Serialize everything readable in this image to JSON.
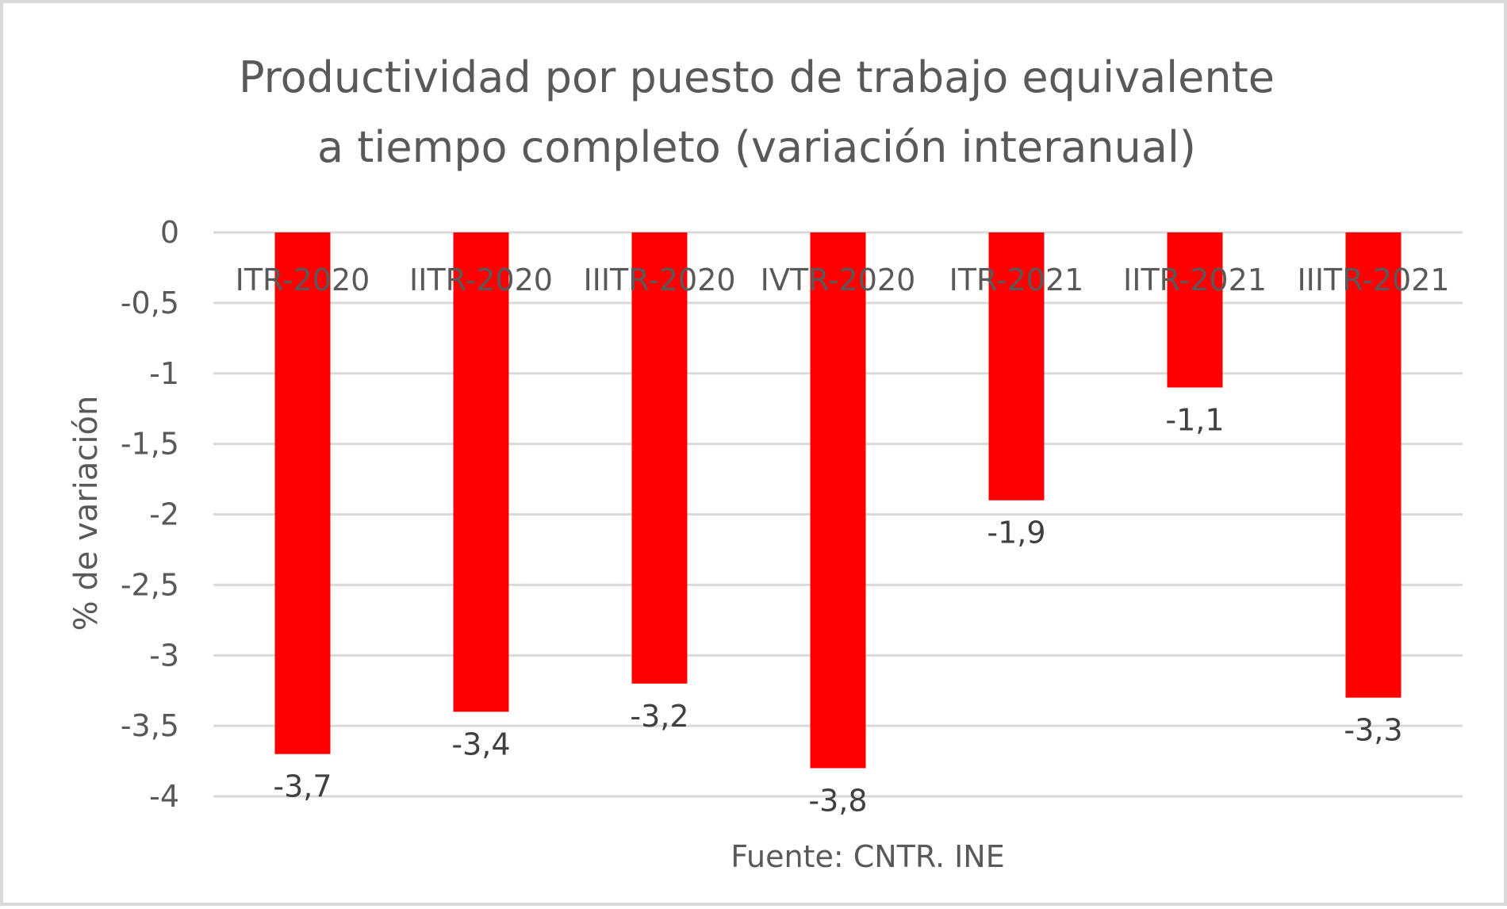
{
  "chart_data": {
    "type": "bar",
    "title_lines": [
      "Productividad por puesto de trabajo equivalente",
      "a tiempo completo (variación interanual)"
    ],
    "ylabel": "% de variación",
    "source": "Fuente: CNTR. INE",
    "categories": [
      "ITR-2020",
      "IITR-2020",
      "IIITR-2020",
      "IVTR-2020",
      "ITR-2021",
      "IITR-2021",
      "IIITR-2021"
    ],
    "values": [
      -3.7,
      -3.4,
      -3.2,
      -3.8,
      -1.9,
      -1.1,
      -3.3
    ],
    "value_labels": [
      "-3,7",
      "-3,4",
      "-3,2",
      "-3,8",
      "-1,9",
      "-1,1",
      "-3,3"
    ],
    "ylim": [
      -4,
      0
    ],
    "yticks": [
      0,
      -0.5,
      -1,
      -1.5,
      -2,
      -2.5,
      -3,
      -3.5,
      -4
    ],
    "ytick_labels": [
      "0",
      "-0,5",
      "-1",
      "-1,5",
      "-2",
      "-2,5",
      "-3",
      "-3,5",
      "-4"
    ],
    "grid": true,
    "legend": "none",
    "bar_color": "#ff0000",
    "grid_color": "#d9d9d9",
    "text_color": "#595959"
  }
}
